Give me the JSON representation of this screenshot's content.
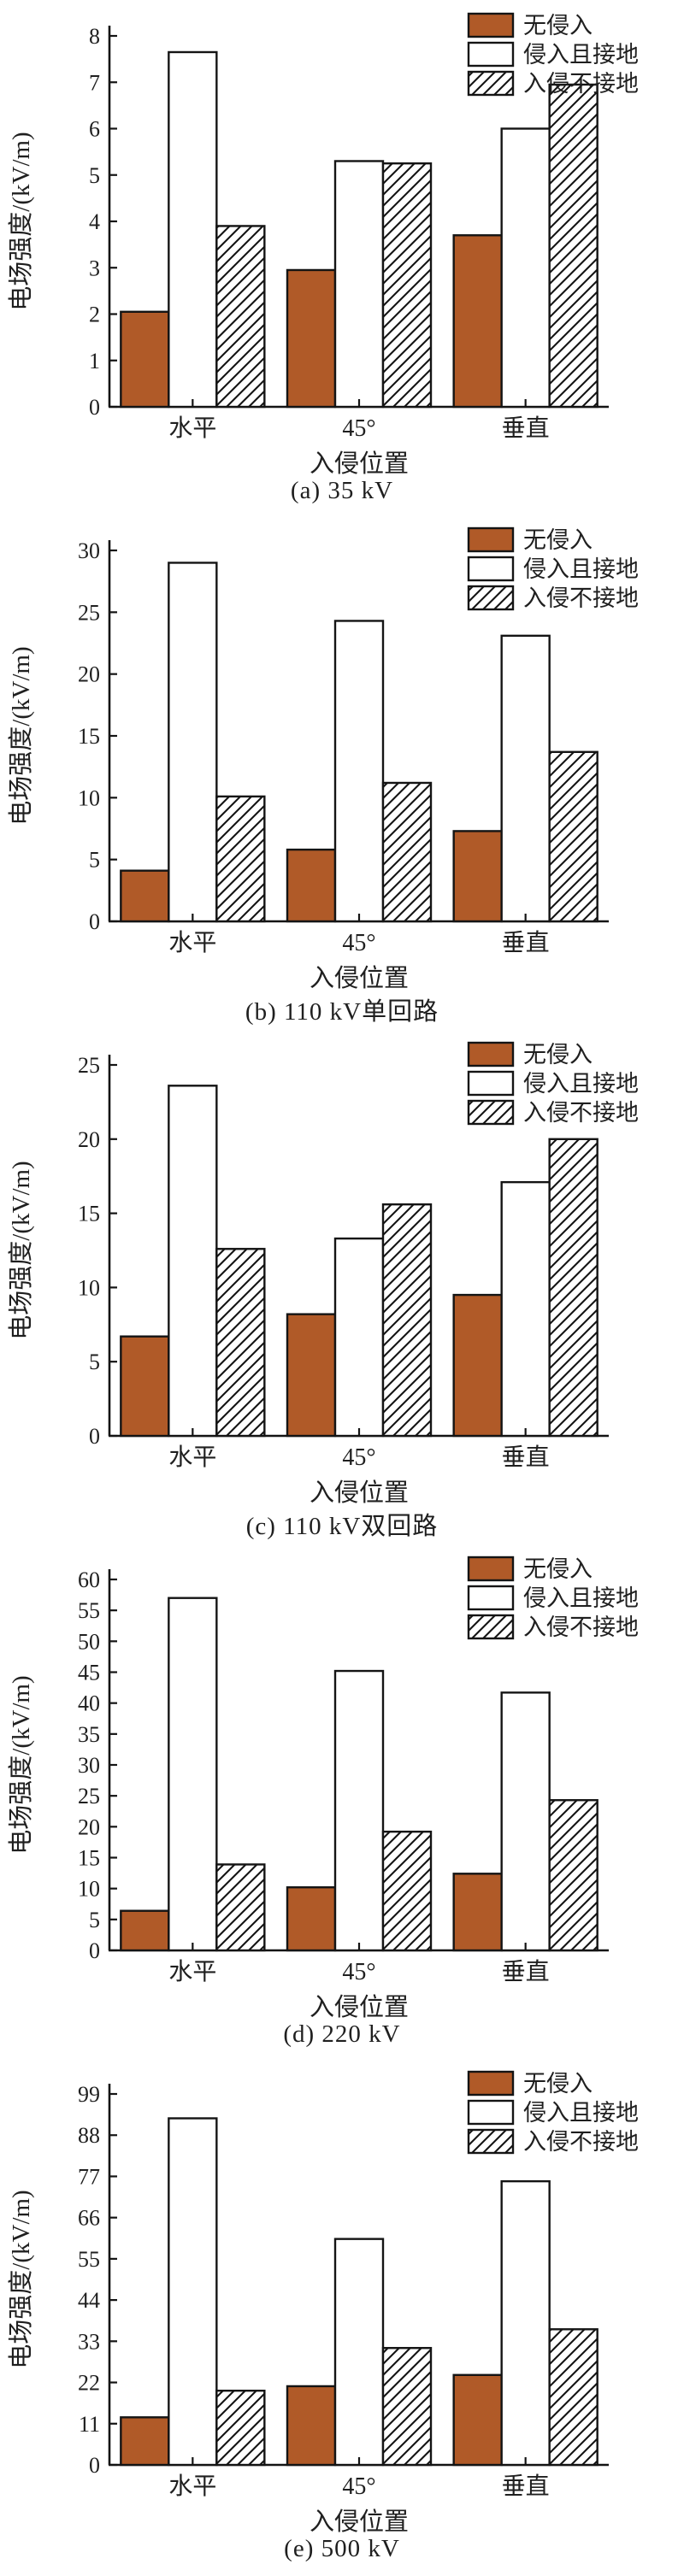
{
  "style": {
    "bar_brown": "#b05a28",
    "stroke": "#141414",
    "text": "#1f1f1f",
    "background": "#ffffff"
  },
  "legend": {
    "position": "top-right",
    "items": [
      {
        "key": "no-intrusion",
        "label": "无侵入",
        "swatch": "brown-solid"
      },
      {
        "key": "intrusion-grounded",
        "label": "侵入且接地",
        "swatch": "white"
      },
      {
        "key": "intrusion-ungrounded",
        "label": "入侵不接地",
        "swatch": "hatched"
      }
    ]
  },
  "chart_data": [
    {
      "type": "bar",
      "caption": "(a) 35 kV",
      "xlabel": "入侵位置",
      "ylabel": "电场强度/(kV/m)",
      "ylim": [
        0,
        8
      ],
      "ytick_step": 1,
      "grid": false,
      "legend_position": "top-right",
      "categories": [
        "水平",
        "45°",
        "垂直"
      ],
      "category_keys": [
        "horizontal",
        "45deg",
        "vertical"
      ],
      "series": [
        {
          "key": "no-intrusion",
          "name": "无侵入",
          "values": [
            2.05,
            2.95,
            3.7
          ]
        },
        {
          "key": "intrusion-grounded",
          "name": "侵入且接地",
          "values": [
            7.65,
            5.3,
            6.0
          ]
        },
        {
          "key": "intrusion-ungrounded",
          "name": "入侵不接地",
          "values": [
            3.9,
            5.25,
            6.95
          ]
        }
      ]
    },
    {
      "type": "bar",
      "caption": "(b) 110 kV单回路",
      "xlabel": "入侵位置",
      "ylabel": "电场强度/(kV/m)",
      "ylim": [
        0,
        30
      ],
      "ytick_step": 5,
      "grid": false,
      "legend_position": "top-right",
      "categories": [
        "水平",
        "45°",
        "垂直"
      ],
      "category_keys": [
        "horizontal",
        "45deg",
        "vertical"
      ],
      "series": [
        {
          "key": "no-intrusion",
          "name": "无侵入",
          "values": [
            4.1,
            5.8,
            7.3
          ]
        },
        {
          "key": "intrusion-grounded",
          "name": "侵入且接地",
          "values": [
            29.0,
            24.3,
            23.1
          ]
        },
        {
          "key": "intrusion-ungrounded",
          "name": "入侵不接地",
          "values": [
            10.1,
            11.2,
            13.7
          ]
        }
      ]
    },
    {
      "type": "bar",
      "caption": "(c) 110 kV双回路",
      "xlabel": "入侵位置",
      "ylabel": "电场强度/(kV/m)",
      "ylim": [
        0,
        25
      ],
      "ytick_step": 5,
      "grid": false,
      "legend_position": "top-right",
      "categories": [
        "水平",
        "45°",
        "垂直"
      ],
      "category_keys": [
        "horizontal",
        "45deg",
        "vertical"
      ],
      "series": [
        {
          "key": "no-intrusion",
          "name": "无侵入",
          "values": [
            6.7,
            8.2,
            9.5
          ]
        },
        {
          "key": "intrusion-grounded",
          "name": "侵入且接地",
          "values": [
            23.6,
            13.3,
            17.1
          ]
        },
        {
          "key": "intrusion-ungrounded",
          "name": "入侵不接地",
          "values": [
            12.6,
            15.6,
            20.0
          ]
        }
      ]
    },
    {
      "type": "bar",
      "caption": "(d) 220 kV",
      "xlabel": "入侵位置",
      "ylabel": "电场强度/(kV/m)",
      "ylim": [
        0,
        60
      ],
      "ytick_step": 5,
      "grid": false,
      "legend_position": "top-right",
      "categories": [
        "水平",
        "45°",
        "垂直"
      ],
      "category_keys": [
        "horizontal",
        "45deg",
        "vertical"
      ],
      "series": [
        {
          "key": "no-intrusion",
          "name": "无侵入",
          "values": [
            6.4,
            10.2,
            12.4
          ]
        },
        {
          "key": "intrusion-grounded",
          "name": "侵入且接地",
          "values": [
            57.0,
            45.2,
            41.7
          ]
        },
        {
          "key": "intrusion-ungrounded",
          "name": "入侵不接地",
          "values": [
            13.9,
            19.2,
            24.3
          ]
        }
      ]
    },
    {
      "type": "bar",
      "caption": "(e) 500 kV",
      "xlabel": "入侵位置",
      "ylabel": "电场强度/(kV/m)",
      "ylim": [
        0,
        99
      ],
      "ytick_step": 11,
      "grid": false,
      "legend_position": "top-right",
      "categories": [
        "水平",
        "45°",
        "垂直"
      ],
      "category_keys": [
        "horizontal",
        "45deg",
        "vertical"
      ],
      "series": [
        {
          "key": "no-intrusion",
          "name": "无侵入",
          "values": [
            12.7,
            21.0,
            24.0
          ]
        },
        {
          "key": "intrusion-grounded",
          "name": "侵入且接地",
          "values": [
            92.5,
            60.3,
            75.7
          ]
        },
        {
          "key": "intrusion-ungrounded",
          "name": "入侵不接地",
          "values": [
            19.8,
            31.2,
            36.2
          ]
        }
      ]
    }
  ]
}
